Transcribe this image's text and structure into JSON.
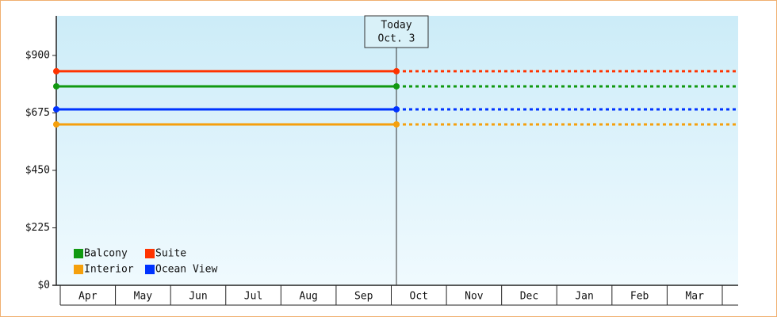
{
  "chart_data": {
    "type": "level-line",
    "categories": [
      "Apr",
      "May",
      "Jun",
      "Jul",
      "Aug",
      "Sep",
      "Oct",
      "Nov",
      "Dec",
      "Jan",
      "Feb",
      "Mar"
    ],
    "ylim": [
      0,
      1055
    ],
    "yticks": [
      {
        "value": 0,
        "label": "$0"
      },
      {
        "value": 225,
        "label": "$225"
      },
      {
        "value": 450,
        "label": "$450"
      },
      {
        "value": 675,
        "label": "$675"
      },
      {
        "value": 900,
        "label": "$900"
      }
    ],
    "annotation": {
      "line1": "Today",
      "line2": "Oct. 3"
    },
    "series": [
      {
        "name": "Balcony",
        "color": "#119911",
        "value": 779
      },
      {
        "name": "Suite",
        "color": "#ff3300",
        "value": 838
      },
      {
        "name": "Interior",
        "color": "#f5a00d",
        "value": 630
      },
      {
        "name": "Ocean View",
        "color": "#0033ff",
        "value": 689
      }
    ]
  }
}
